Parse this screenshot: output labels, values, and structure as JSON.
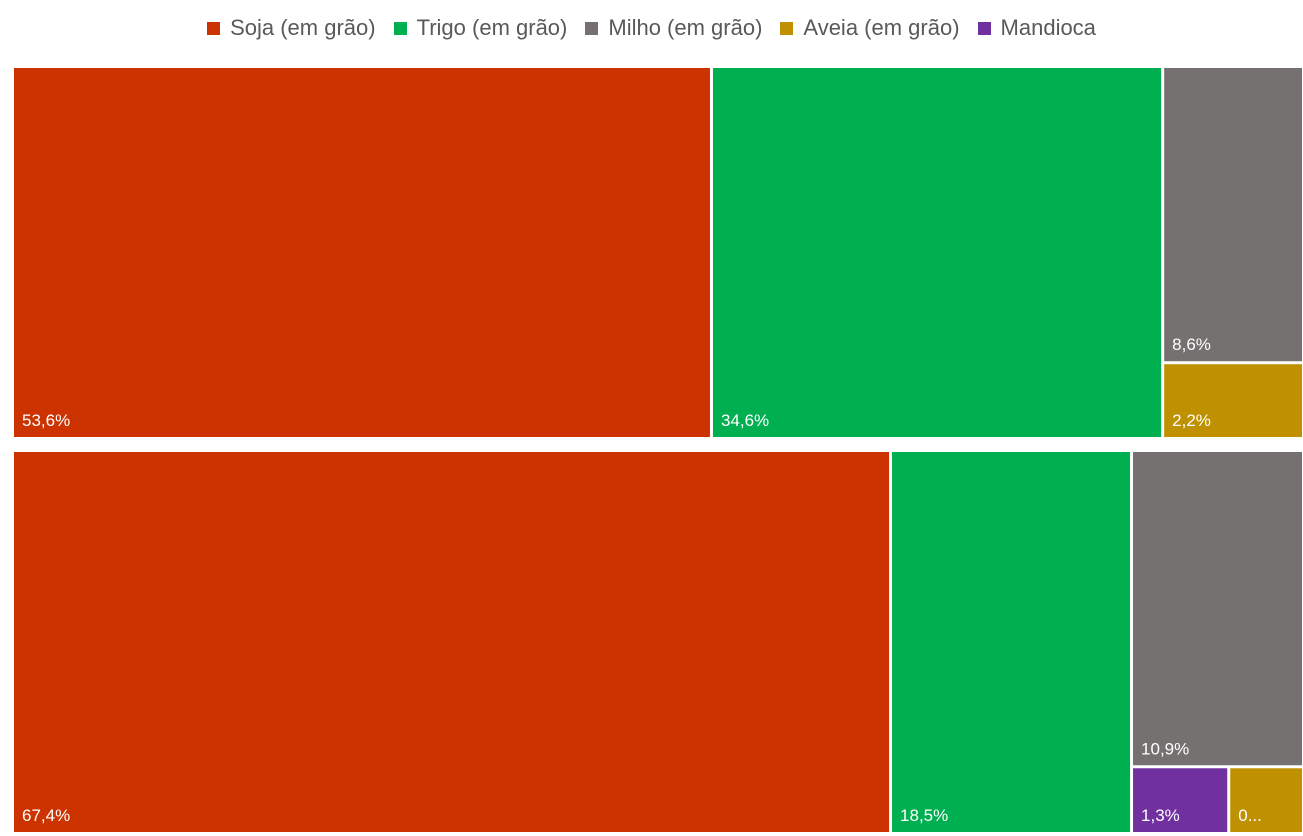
{
  "chart_data": {
    "type": "treemap",
    "legend_placement": "top",
    "categories": [
      "Soja (em grão)",
      "Trigo (em grão)",
      "Milho (em grão)",
      "Aveia (em grão)",
      "Mandioca"
    ],
    "colors": {
      "Soja (em grão)": "#CC3300",
      "Trigo (em grão)": "#00B050",
      "Milho (em grão)": "#767171",
      "Aveia (em grão)": "#BF9000",
      "Mandioca": "#7030A0"
    },
    "groups": [
      {
        "tiles": [
          {
            "category": "Soja (em grão)",
            "value": 53.6,
            "label": "53,6%"
          },
          {
            "category": "Trigo (em grão)",
            "value": 34.6,
            "label": "34,6%"
          },
          {
            "category": "Milho (em grão)",
            "value": 8.6,
            "label": "8,6%"
          },
          {
            "category": "Aveia (em grão)",
            "value": 2.2,
            "label": "2,2%"
          }
        ]
      },
      {
        "tiles": [
          {
            "category": "Soja (em grão)",
            "value": 67.4,
            "label": "67,4%"
          },
          {
            "category": "Trigo (em grão)",
            "value": 18.5,
            "label": "18,5%"
          },
          {
            "category": "Milho (em grão)",
            "value": 10.9,
            "label": "10,9%"
          },
          {
            "category": "Mandioca",
            "value": 1.3,
            "label": "1,3%"
          },
          {
            "category": "Aveia (em grão)",
            "value": 1.0,
            "label": "0..."
          }
        ]
      }
    ]
  }
}
